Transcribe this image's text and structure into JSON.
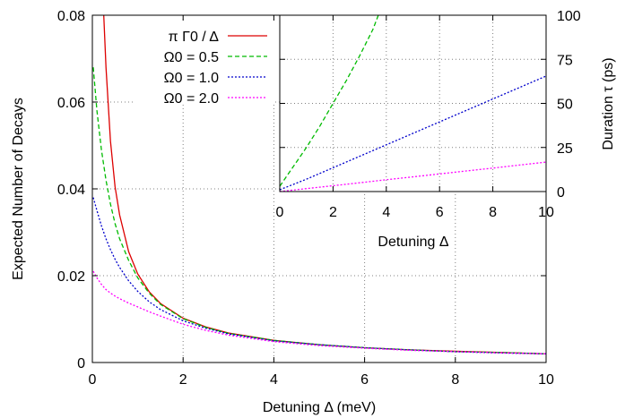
{
  "chart_data": [
    {
      "panel": "main",
      "type": "line",
      "xlabel": "Detuning Δ (meV)",
      "ylabel": "Expected Number of Decays",
      "xlim": [
        0,
        10
      ],
      "ylim": [
        0,
        0.08
      ],
      "xticks": [
        "0",
        "2",
        "4",
        "6",
        "8",
        "10"
      ],
      "yticks": [
        "0",
        "0.02",
        "0.04",
        "0.06",
        "0.08"
      ],
      "grid": "dotted gridlines at x = 2, 4, 6, 8 and y = 0.02, 0.04, 0.06",
      "legend_position": "top-right (left of inset)",
      "series": [
        {
          "name": "π Γ0 / Δ",
          "color": "#dd0000",
          "dash": "solid",
          "x": [
            0.25,
            0.3,
            0.4,
            0.5,
            0.6,
            0.8,
            1.0,
            1.25,
            1.5,
            2.0,
            2.5,
            3.0,
            4.0,
            5.0,
            6.0,
            7.0,
            8.0,
            9.0,
            10.0
          ],
          "y": [
            0.08,
            0.068,
            0.051,
            0.0405,
            0.034,
            0.0255,
            0.0204,
            0.0163,
            0.0136,
            0.0102,
            0.0082,
            0.0068,
            0.0051,
            0.0041,
            0.0034,
            0.0029,
            0.0026,
            0.0023,
            0.002
          ]
        },
        {
          "name": "Ω0 = 0.5",
          "color": "#00bb00",
          "dash": "dashed",
          "x": [
            0.02,
            0.1,
            0.2,
            0.3,
            0.4,
            0.5,
            0.6,
            0.8,
            1.0,
            1.25,
            1.5,
            2.0,
            2.5,
            3.0,
            4.0,
            5.0,
            6.0,
            7.0,
            8.0,
            9.0,
            10.0
          ],
          "y": [
            0.068,
            0.058,
            0.049,
            0.042,
            0.0365,
            0.032,
            0.0285,
            0.0235,
            0.0195,
            0.016,
            0.0134,
            0.0101,
            0.0081,
            0.0067,
            0.0051,
            0.0041,
            0.0034,
            0.0029,
            0.0025,
            0.0023,
            0.002
          ]
        },
        {
          "name": "Ω0 = 1.0",
          "color": "#0000cc",
          "dash": "dotted",
          "x": [
            0.02,
            0.1,
            0.2,
            0.3,
            0.4,
            0.5,
            0.6,
            0.8,
            1.0,
            1.25,
            1.5,
            2.0,
            2.5,
            3.0,
            4.0,
            5.0,
            6.0,
            7.0,
            8.0,
            9.0,
            10.0
          ],
          "y": [
            0.038,
            0.035,
            0.0315,
            0.0285,
            0.026,
            0.0238,
            0.0219,
            0.0188,
            0.0164,
            0.014,
            0.0122,
            0.0096,
            0.0079,
            0.0066,
            0.005,
            0.0041,
            0.0034,
            0.0029,
            0.0025,
            0.0022,
            0.002
          ]
        },
        {
          "name": "Ω0 = 2.0",
          "color": "#ff00ff",
          "dash": "dotted",
          "x": [
            0.02,
            0.1,
            0.2,
            0.3,
            0.4,
            0.5,
            0.6,
            0.8,
            1.0,
            1.25,
            1.5,
            2.0,
            2.5,
            3.0,
            4.0,
            5.0,
            6.0,
            7.0,
            8.0,
            9.0,
            10.0
          ],
          "y": [
            0.021,
            0.0195,
            0.018,
            0.0168,
            0.016,
            0.0153,
            0.0147,
            0.0137,
            0.0128,
            0.0117,
            0.0107,
            0.0088,
            0.0074,
            0.0063,
            0.0048,
            0.0039,
            0.0033,
            0.0028,
            0.0025,
            0.0022,
            0.002
          ]
        }
      ]
    },
    {
      "panel": "inset",
      "type": "line",
      "xlabel": "Detuning Δ",
      "ylabel": "Duration τ (ps)",
      "xlim": [
        0,
        10
      ],
      "ylim": [
        0,
        100
      ],
      "xticks": [
        "0",
        "2",
        "4",
        "6",
        "8",
        "10"
      ],
      "yticks": [
        "0",
        "25",
        "50",
        "75",
        "100"
      ],
      "grid": "dotted gridlines at x = 2, 4, 6, 8 and y = 25, 50, 75",
      "series": [
        {
          "color": "#00bb00",
          "dash": "dashed",
          "x": [
            0,
            0.5,
            1,
            1.5,
            2,
            2.5,
            3,
            3.5,
            3.7
          ],
          "y": [
            3,
            14,
            25,
            37,
            50,
            63,
            77,
            92,
            100
          ]
        },
        {
          "color": "#0000cc",
          "dash": "dotted",
          "x": [
            0,
            1,
            2,
            3,
            4,
            5,
            6,
            7,
            8,
            9,
            10
          ],
          "y": [
            1,
            7,
            13.5,
            20,
            26.5,
            33,
            39.5,
            46,
            52.5,
            59,
            65.5
          ]
        },
        {
          "color": "#ff00ff",
          "dash": "dotted",
          "x": [
            0,
            1,
            2,
            3,
            4,
            5,
            6,
            7,
            8,
            9,
            10
          ],
          "y": [
            0,
            1.7,
            3.3,
            5,
            6.7,
            8.3,
            10,
            11.7,
            13.3,
            15,
            16.7
          ]
        }
      ]
    }
  ]
}
